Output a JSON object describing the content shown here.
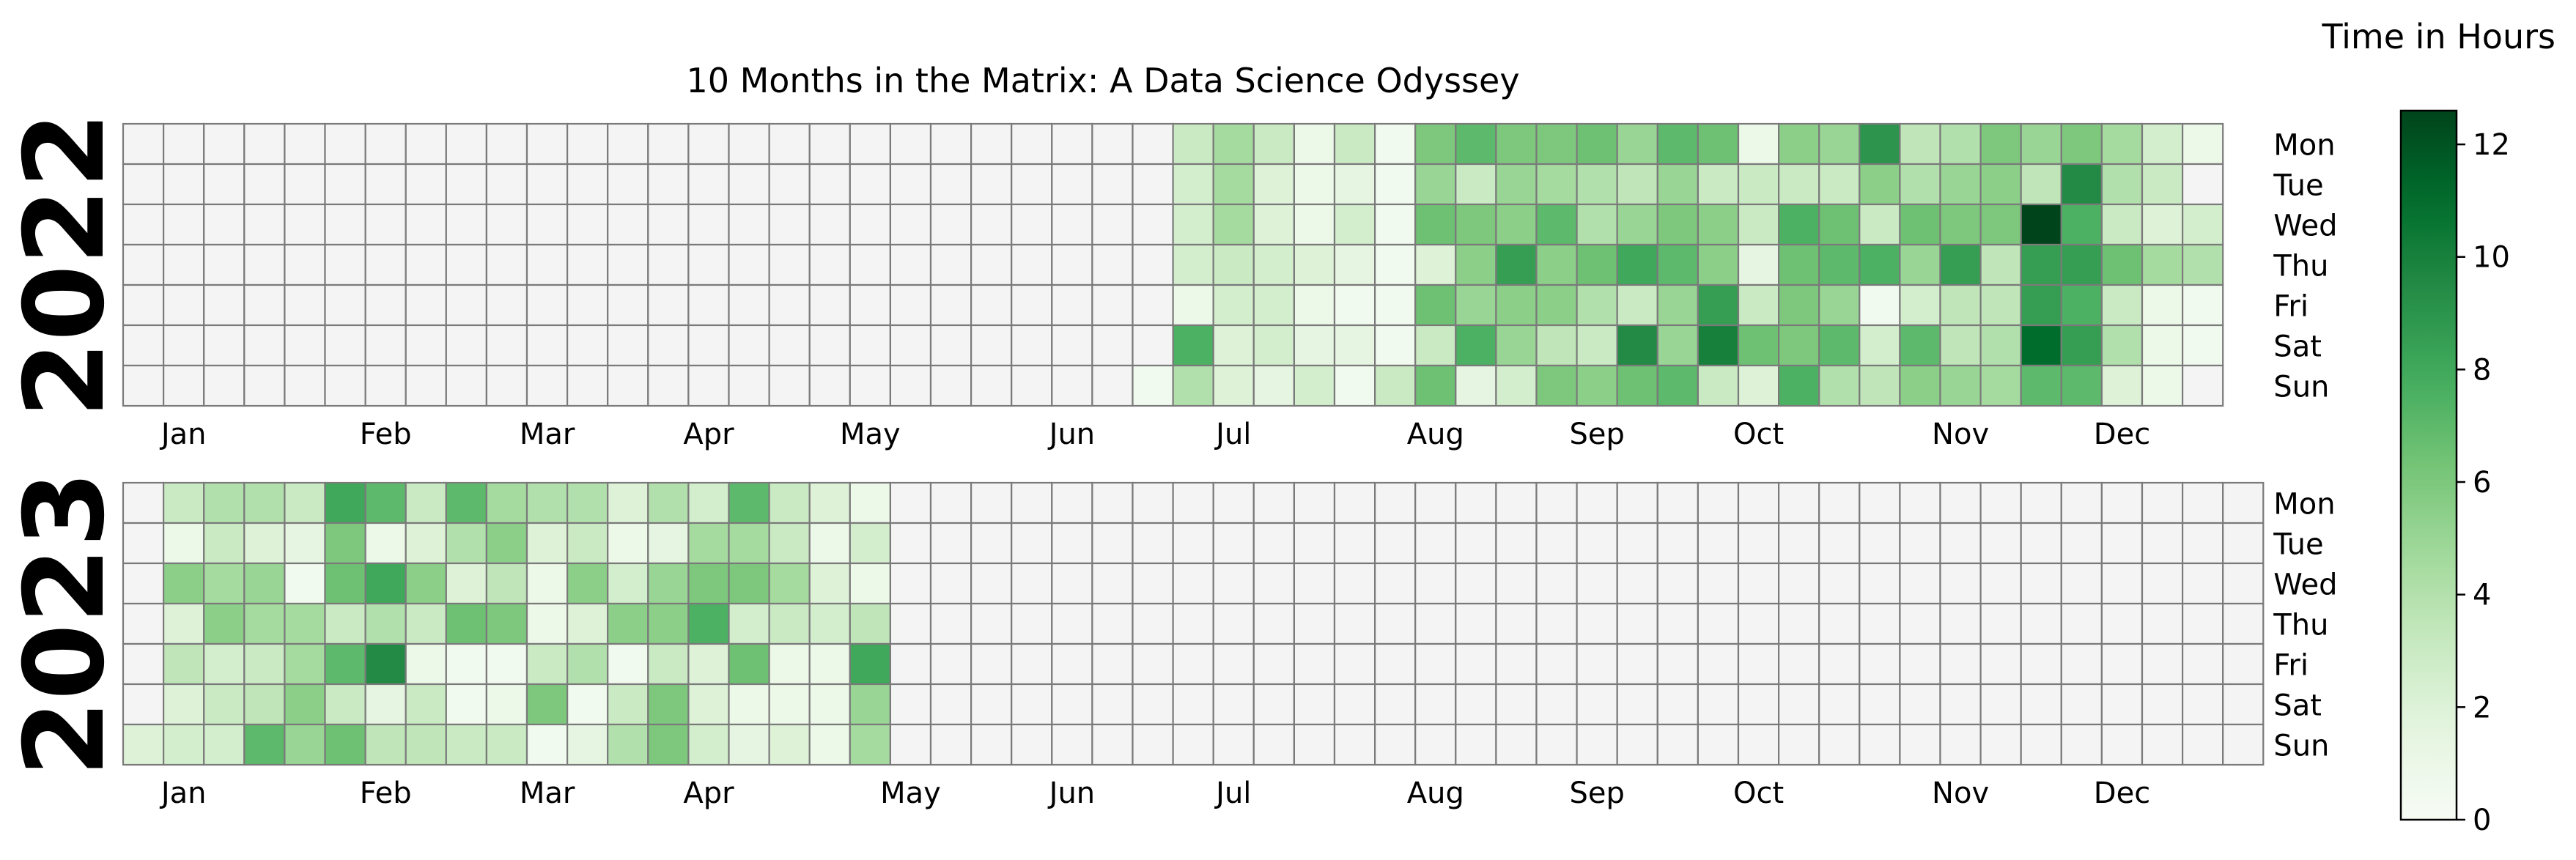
{
  "chart_data": {
    "type": "heatmap",
    "title": "10 Months in the Matrix: A Data Science Odyssey",
    "colorbar": {
      "label": "Time in Hours",
      "min": 0,
      "max": 12.6,
      "ticks": [
        "0",
        "2",
        "4",
        "6",
        "8",
        "10",
        "12"
      ],
      "colormap": "Greens"
    },
    "weekdays": [
      "Mon",
      "Tue",
      "Wed",
      "Thu",
      "Fri",
      "Sat",
      "Sun"
    ],
    "months": [
      "Jan",
      "Feb",
      "Mar",
      "Apr",
      "May",
      "Jun",
      "Jul",
      "Aug",
      "Sep",
      "Oct",
      "Nov",
      "Dec"
    ],
    "years": [
      {
        "year": "2022",
        "month_label_weeks": [
          1.5,
          6.5,
          10.5,
          14.5,
          18.5,
          23.5,
          27.5,
          32.5,
          36.5,
          40.5,
          45.5,
          49.5
        ],
        "weeks": [
          [
            null,
            null,
            null,
            null,
            null,
            null,
            null
          ],
          [
            null,
            null,
            null,
            null,
            null,
            null,
            null
          ],
          [
            null,
            null,
            null,
            null,
            null,
            null,
            null
          ],
          [
            null,
            null,
            null,
            null,
            null,
            null,
            null
          ],
          [
            null,
            null,
            null,
            null,
            null,
            null,
            null
          ],
          [
            null,
            null,
            null,
            null,
            null,
            null,
            null
          ],
          [
            null,
            null,
            null,
            null,
            null,
            null,
            null
          ],
          [
            null,
            null,
            null,
            null,
            null,
            null,
            null
          ],
          [
            null,
            null,
            null,
            null,
            null,
            null,
            null
          ],
          [
            null,
            null,
            null,
            null,
            null,
            null,
            null
          ],
          [
            null,
            null,
            null,
            null,
            null,
            null,
            null
          ],
          [
            null,
            null,
            null,
            null,
            null,
            null,
            null
          ],
          [
            null,
            null,
            null,
            null,
            null,
            null,
            null
          ],
          [
            null,
            null,
            null,
            null,
            null,
            null,
            null
          ],
          [
            null,
            null,
            null,
            null,
            null,
            null,
            null
          ],
          [
            null,
            null,
            null,
            null,
            null,
            null,
            null
          ],
          [
            null,
            null,
            null,
            null,
            null,
            null,
            null
          ],
          [
            null,
            null,
            null,
            null,
            null,
            null,
            null
          ],
          [
            null,
            null,
            null,
            null,
            null,
            null,
            null
          ],
          [
            null,
            null,
            null,
            null,
            null,
            null,
            null
          ],
          [
            null,
            null,
            null,
            null,
            null,
            null,
            null
          ],
          [
            null,
            null,
            null,
            null,
            null,
            null,
            null
          ],
          [
            null,
            null,
            null,
            null,
            null,
            null,
            null
          ],
          [
            null,
            null,
            null,
            null,
            null,
            null,
            null
          ],
          [
            null,
            null,
            null,
            null,
            null,
            null,
            null
          ],
          [
            null,
            null,
            null,
            null,
            null,
            null,
            0.5
          ],
          [
            3.0,
            2.5,
            2.5,
            2.5,
            1.0,
            7.5,
            4.0
          ],
          [
            4.5,
            4.5,
            4.5,
            3.0,
            2.5,
            2.0,
            2.0
          ],
          [
            3.0,
            2.0,
            2.0,
            2.5,
            2.5,
            2.5,
            1.5
          ],
          [
            1.0,
            1.0,
            1.0,
            2.0,
            1.0,
            1.5,
            2.5
          ],
          [
            3.0,
            1.5,
            2.5,
            1.5,
            0.5,
            1.5,
            0.5
          ],
          [
            0.5,
            0.5,
            0.5,
            0.5,
            0.5,
            0.5,
            3.0
          ],
          [
            6.0,
            5.0,
            6.5,
            2.0,
            6.5,
            3.0,
            6.5
          ],
          [
            7.0,
            3.0,
            6.0,
            5.5,
            5.0,
            7.5,
            1.5
          ],
          [
            6.0,
            5.0,
            5.5,
            8.5,
            5.5,
            5.0,
            2.5
          ],
          [
            6.0,
            4.5,
            7.0,
            5.5,
            5.5,
            3.5,
            6.0
          ],
          [
            6.5,
            4.0,
            4.0,
            6.5,
            4.0,
            3.0,
            5.5
          ],
          [
            5.0,
            3.5,
            5.0,
            8.0,
            3.0,
            9.5,
            6.5
          ],
          [
            7.0,
            5.0,
            6.0,
            7.0,
            5.0,
            5.0,
            7.0
          ],
          [
            6.5,
            3.0,
            5.5,
            5.5,
            8.5,
            10.0,
            3.0
          ],
          [
            1.0,
            3.0,
            3.0,
            1.5,
            3.0,
            6.5,
            2.0
          ],
          [
            5.5,
            3.0,
            7.5,
            6.5,
            6.0,
            6.0,
            7.5
          ],
          [
            5.0,
            3.0,
            6.5,
            7.0,
            5.0,
            7.0,
            4.0
          ],
          [
            9.0,
            5.5,
            3.0,
            7.5,
            0.5,
            2.5,
            3.5
          ],
          [
            3.5,
            4.0,
            6.5,
            5.0,
            2.5,
            7.0,
            5.5
          ],
          [
            4.0,
            5.0,
            6.0,
            8.5,
            3.5,
            3.5,
            5.0
          ],
          [
            6.0,
            5.5,
            6.0,
            3.5,
            3.5,
            4.0,
            4.5
          ],
          [
            5.0,
            3.5,
            12.6,
            8.5,
            8.5,
            11.0,
            7.0
          ],
          [
            6.0,
            9.5,
            7.5,
            8.5,
            7.5,
            8.5,
            7.0
          ],
          [
            4.5,
            4.0,
            3.0,
            6.5,
            3.0,
            4.0,
            2.0
          ],
          [
            2.5,
            3.0,
            2.0,
            4.5,
            1.0,
            1.0,
            1.0
          ],
          [
            1.0,
            null,
            2.5,
            4.0,
            0.5,
            0.5,
            null
          ]
        ]
      },
      {
        "year": "2023",
        "month_label_weeks": [
          1.5,
          6.5,
          10.5,
          14.5,
          19.5,
          23.5,
          27.5,
          32.5,
          36.5,
          40.5,
          45.5,
          49.5
        ],
        "weeks": [
          [
            null,
            null,
            null,
            null,
            null,
            null,
            2.0
          ],
          [
            3.0,
            1.0,
            5.5,
            2.0,
            3.5,
            2.0,
            2.5
          ],
          [
            4.0,
            3.0,
            4.5,
            5.5,
            2.5,
            3.0,
            2.5
          ],
          [
            4.0,
            2.0,
            5.0,
            4.5,
            3.0,
            3.5,
            7.0
          ],
          [
            3.0,
            1.5,
            0.5,
            4.5,
            4.5,
            5.5,
            5.0
          ],
          [
            8.0,
            6.0,
            6.5,
            3.0,
            7.0,
            3.0,
            6.5
          ],
          [
            7.0,
            1.0,
            8.0,
            4.0,
            9.5,
            1.5,
            3.5
          ],
          [
            3.0,
            2.0,
            5.5,
            3.0,
            1.0,
            3.0,
            3.5
          ],
          [
            7.0,
            4.0,
            2.0,
            6.5,
            0.5,
            0.5,
            3.0
          ],
          [
            4.5,
            5.5,
            3.5,
            6.0,
            0.5,
            1.0,
            3.0
          ],
          [
            4.0,
            2.0,
            1.0,
            1.0,
            3.0,
            6.0,
            0.5
          ],
          [
            4.0,
            3.0,
            5.5,
            2.0,
            4.0,
            0.5,
            1.5
          ],
          [
            2.0,
            1.0,
            2.5,
            5.5,
            0.5,
            3.0,
            4.0
          ],
          [
            4.0,
            1.5,
            5.0,
            5.5,
            3.0,
            6.0,
            6.0
          ],
          [
            2.5,
            4.5,
            6.0,
            7.5,
            2.0,
            2.0,
            2.5
          ],
          [
            7.0,
            4.5,
            6.0,
            2.5,
            6.5,
            1.0,
            1.5
          ],
          [
            3.0,
            3.0,
            4.5,
            3.0,
            1.0,
            1.0,
            2.0
          ],
          [
            2.0,
            1.0,
            2.0,
            2.5,
            1.0,
            1.0,
            1.0
          ],
          [
            1.0,
            2.5,
            1.0,
            3.5,
            8.0,
            5.0,
            4.5
          ],
          [
            null,
            null,
            null,
            null,
            null,
            null,
            null
          ],
          [
            null,
            null,
            null,
            null,
            null,
            null,
            null
          ],
          [
            null,
            null,
            null,
            null,
            null,
            null,
            null
          ],
          [
            null,
            null,
            null,
            null,
            null,
            null,
            null
          ],
          [
            null,
            null,
            null,
            null,
            null,
            null,
            null
          ],
          [
            null,
            null,
            null,
            null,
            null,
            null,
            null
          ],
          [
            null,
            null,
            null,
            null,
            null,
            null,
            null
          ],
          [
            null,
            null,
            null,
            null,
            null,
            null,
            null
          ],
          [
            null,
            null,
            null,
            null,
            null,
            null,
            null
          ],
          [
            null,
            null,
            null,
            null,
            null,
            null,
            null
          ],
          [
            null,
            null,
            null,
            null,
            null,
            null,
            null
          ],
          [
            null,
            null,
            null,
            null,
            null,
            null,
            null
          ],
          [
            null,
            null,
            null,
            null,
            null,
            null,
            null
          ],
          [
            null,
            null,
            null,
            null,
            null,
            null,
            null
          ],
          [
            null,
            null,
            null,
            null,
            null,
            null,
            null
          ],
          [
            null,
            null,
            null,
            null,
            null,
            null,
            null
          ],
          [
            null,
            null,
            null,
            null,
            null,
            null,
            null
          ],
          [
            null,
            null,
            null,
            null,
            null,
            null,
            null
          ],
          [
            null,
            null,
            null,
            null,
            null,
            null,
            null
          ],
          [
            null,
            null,
            null,
            null,
            null,
            null,
            null
          ],
          [
            null,
            null,
            null,
            null,
            null,
            null,
            null
          ],
          [
            null,
            null,
            null,
            null,
            null,
            null,
            null
          ],
          [
            null,
            null,
            null,
            null,
            null,
            null,
            null
          ],
          [
            null,
            null,
            null,
            null,
            null,
            null,
            null
          ],
          [
            null,
            null,
            null,
            null,
            null,
            null,
            null
          ],
          [
            null,
            null,
            null,
            null,
            null,
            null,
            null
          ],
          [
            null,
            null,
            null,
            null,
            null,
            null,
            null
          ],
          [
            null,
            null,
            null,
            null,
            null,
            null,
            null
          ],
          [
            null,
            null,
            null,
            null,
            null,
            null,
            null
          ],
          [
            null,
            null,
            null,
            null,
            null,
            null,
            null
          ],
          [
            null,
            null,
            null,
            null,
            null,
            null,
            null
          ],
          [
            null,
            null,
            null,
            null,
            null,
            null,
            null
          ],
          [
            null,
            null,
            null,
            null,
            null,
            null,
            null
          ],
          [
            null,
            null,
            null,
            null,
            null,
            null,
            null
          ]
        ]
      }
    ]
  }
}
